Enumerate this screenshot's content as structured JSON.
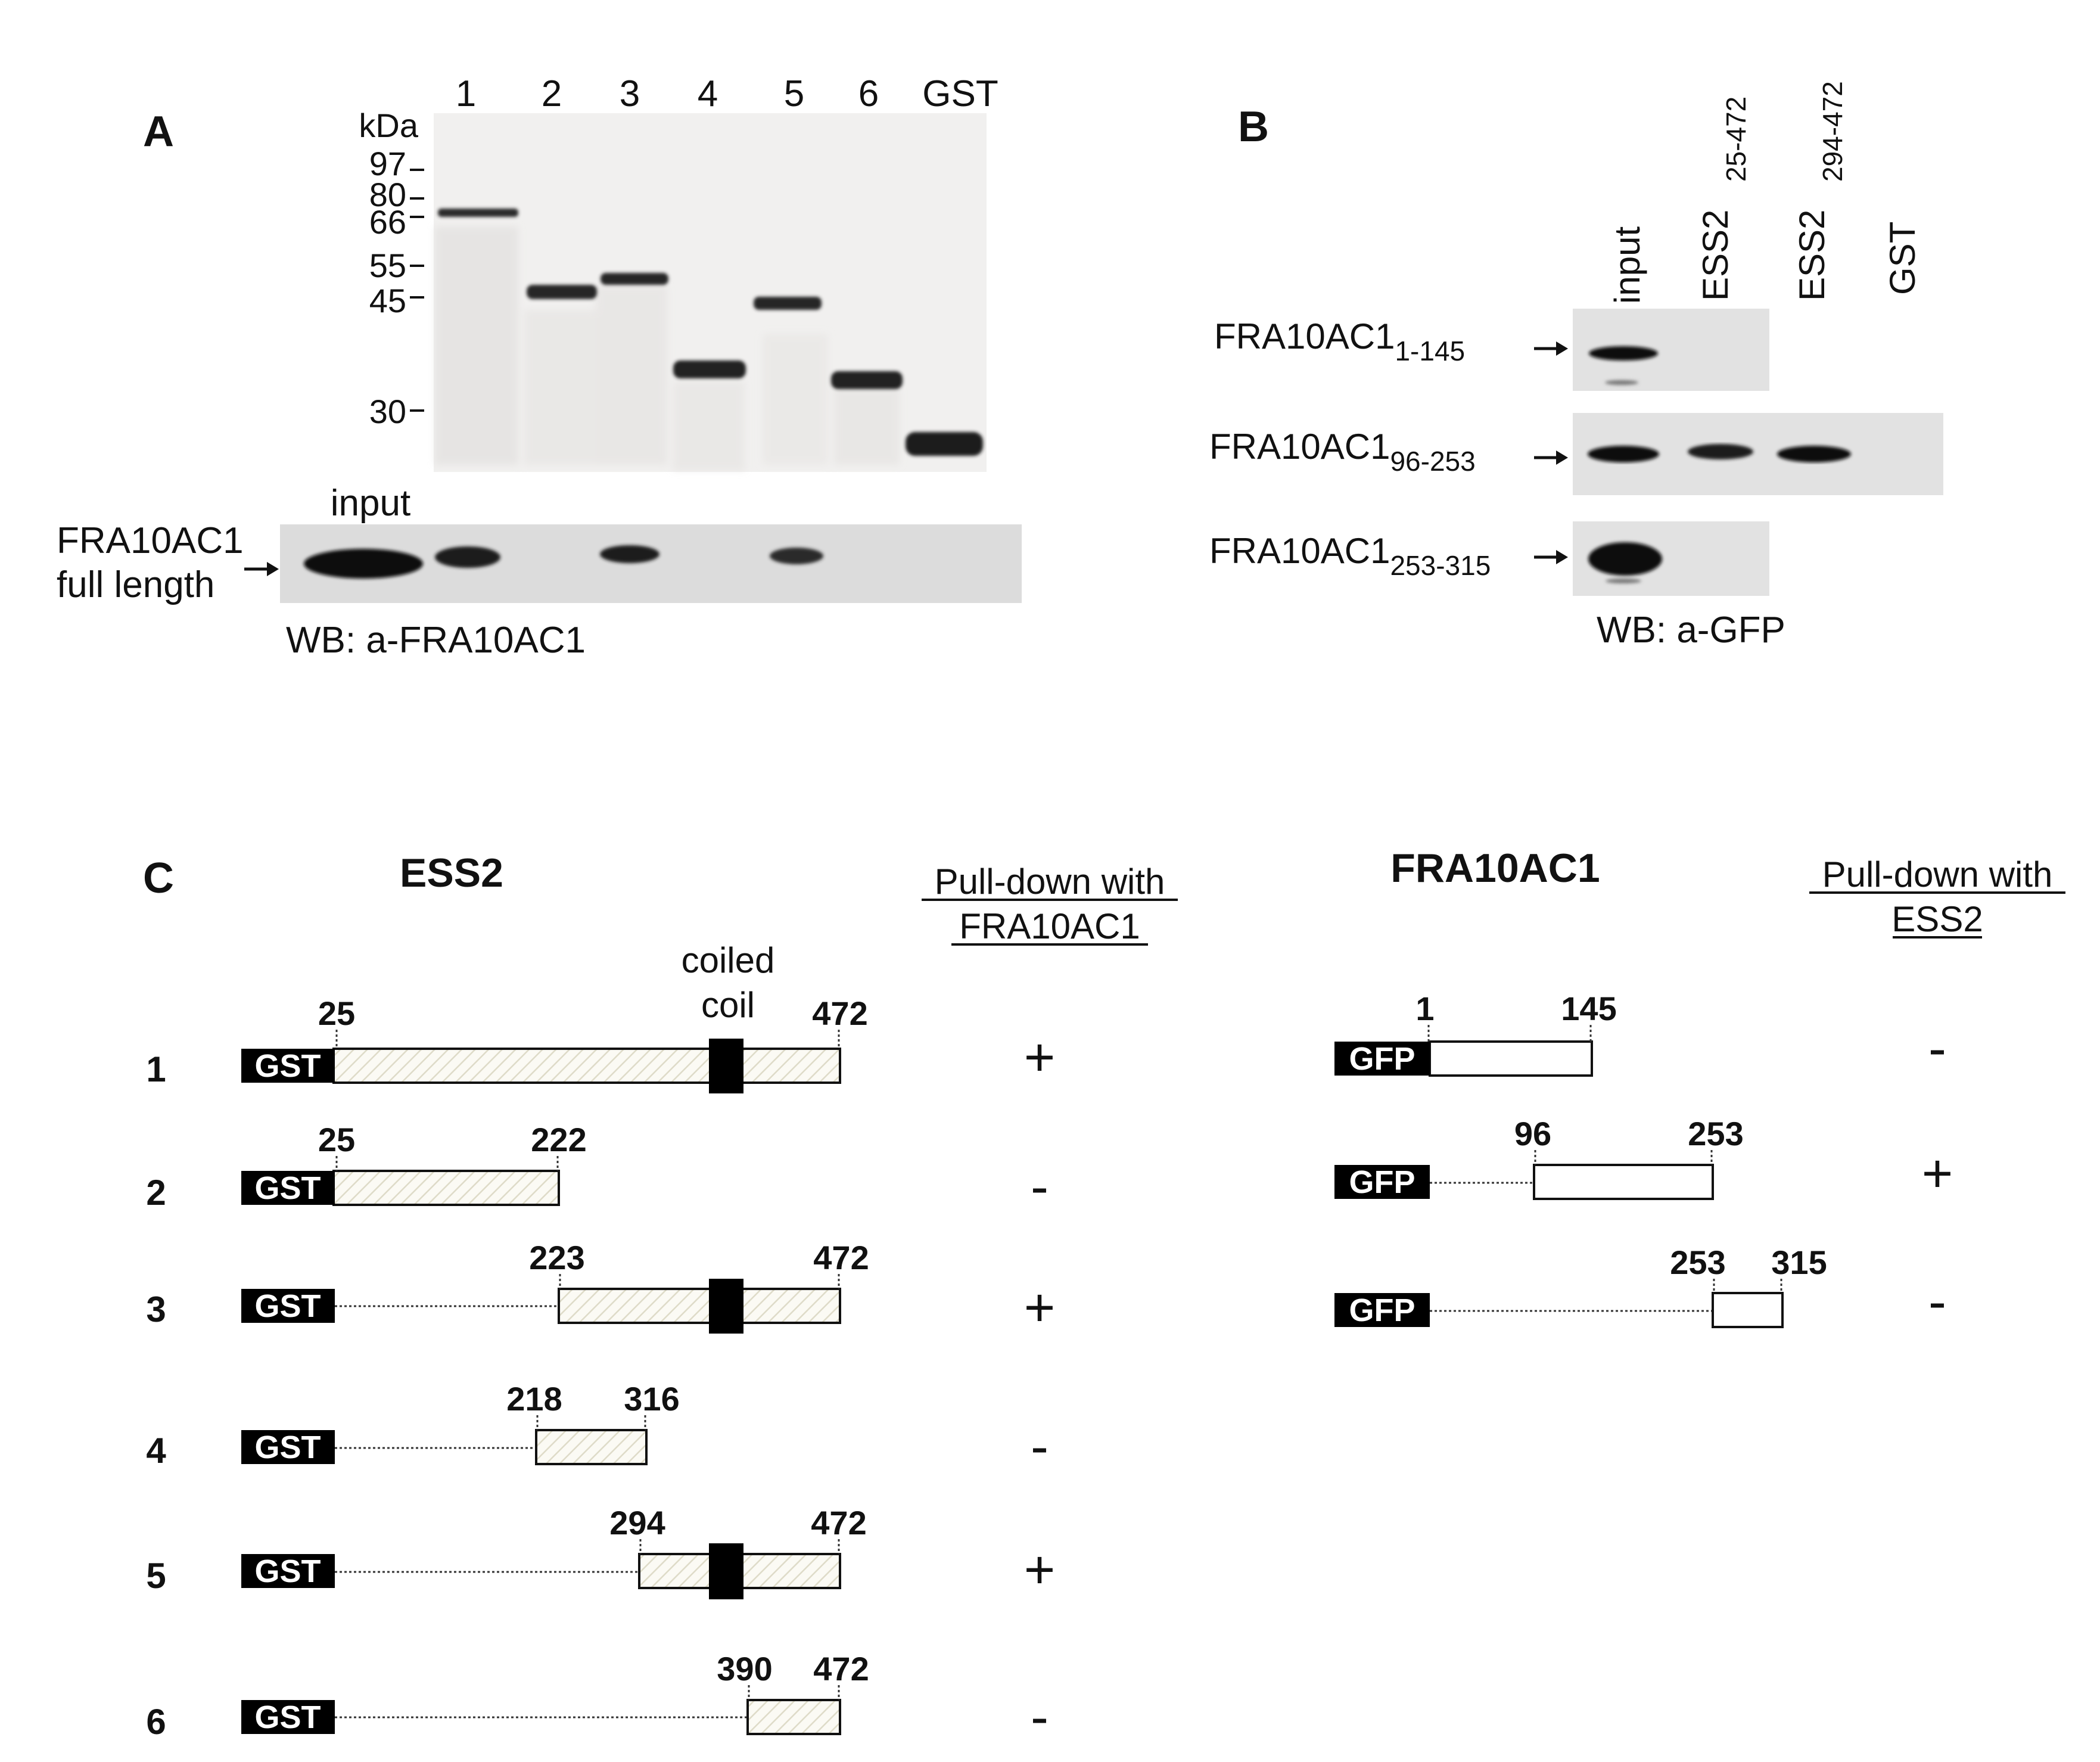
{
  "panel_a": {
    "letter": "A",
    "lanes": [
      "1",
      "2",
      "3",
      "4",
      "5",
      "6",
      "GST"
    ],
    "kda_label": "kDa",
    "markers": [
      "97",
      "80",
      "66",
      "55",
      "45",
      "30"
    ],
    "input_label": "input",
    "side_label_1": "FRA10AC1",
    "side_label_2": "full length",
    "wb_label": "WB: a-FRA10AC1"
  },
  "panel_b": {
    "letter": "B",
    "lanes": [
      {
        "main": "input",
        "sub": ""
      },
      {
        "main": "ESS2",
        "sub": "25-472"
      },
      {
        "main": "ESS2",
        "sub": "294-472"
      },
      {
        "main": "GST",
        "sub": ""
      }
    ],
    "rows": [
      {
        "main": "FRA10AC1",
        "sub": "1-145"
      },
      {
        "main": "FRA10AC1",
        "sub": "96-253"
      },
      {
        "main": "FRA10AC1",
        "sub": "253-315"
      }
    ],
    "wb_label": "WB: a-GFP"
  },
  "panel_c": {
    "letter": "C",
    "ess2_title": "ESS2",
    "ess2_pull_1": "Pull-down with",
    "ess2_pull_2": "FRA10AC1",
    "coiled_1": "coiled",
    "coiled_2": "coil",
    "tag_gst": "GST",
    "ess2_constructs": [
      {
        "num": "1",
        "start": "25",
        "end": "472",
        "result": "+"
      },
      {
        "num": "2",
        "start": "25",
        "end": "222",
        "result": "-"
      },
      {
        "num": "3",
        "start": "223",
        "end": "472",
        "result": "+"
      },
      {
        "num": "4",
        "start": "218",
        "end": "316",
        "result": "-"
      },
      {
        "num": "5",
        "start": "294",
        "end": "472",
        "result": "+"
      },
      {
        "num": "6",
        "start": "390",
        "end": "472",
        "result": "-"
      }
    ],
    "fra_title": "FRA10AC1",
    "fra_pull_1": "Pull-down with",
    "fra_pull_2": "ESS2",
    "tag_gfp": "GFP",
    "fra_constructs": [
      {
        "start": "1",
        "end": "145",
        "result": "-"
      },
      {
        "start": "96",
        "end": "253",
        "result": "+"
      },
      {
        "start": "253",
        "end": "315",
        "result": "-"
      }
    ]
  }
}
